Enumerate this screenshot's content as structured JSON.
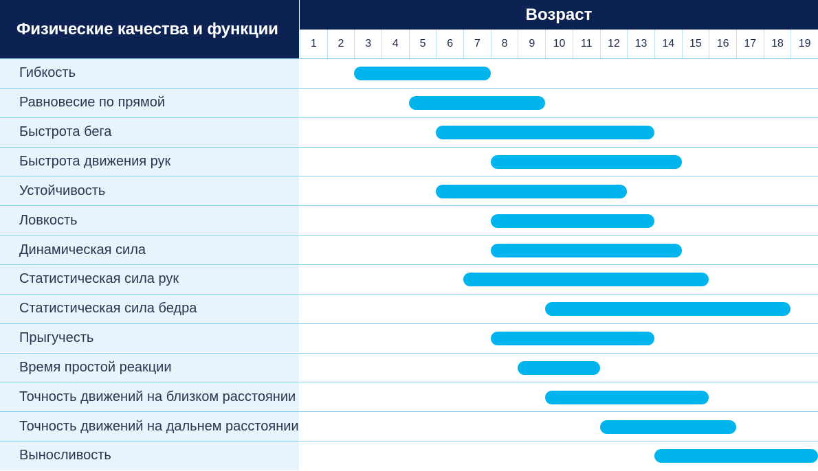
{
  "header": {
    "left_title": "Физические качества и функции",
    "age_title": "Возраст"
  },
  "colors": {
    "header_bg": "#0b2253",
    "label_bg": "#e8f3fb",
    "bar": "#00b4ee",
    "row_line": "#7fcfee"
  },
  "chart_data": {
    "type": "bar",
    "orientation": "horizontal-range",
    "title": "",
    "xlabel": "Возраст",
    "ylabel": "Физические качества и функции",
    "x_ticks": [
      "1",
      "2",
      "3",
      "4",
      "5",
      "6",
      "7",
      "8",
      "9",
      "10",
      "11",
      "12",
      "13",
      "14",
      "15",
      "16",
      "17",
      "18",
      "19"
    ],
    "xlim": [
      1,
      19
    ],
    "categories": [
      "Гибкость",
      "Равновесие по прямой",
      "Быстрота бега",
      "Быстрота движения рук",
      "Устойчивость",
      "Ловкость",
      "Динамическая сила",
      "Статистическая сила рук",
      "Статистическая сила бедра",
      "Прыгучесть",
      "Время простой реакции",
      "Точность движений на близком расстоянии",
      "Точность движений на дальнем расстоянии",
      "Выносливость"
    ],
    "ranges": [
      [
        3,
        7
      ],
      [
        5,
        9
      ],
      [
        6,
        13
      ],
      [
        8,
        14
      ],
      [
        6,
        12
      ],
      [
        8,
        13
      ],
      [
        8,
        14
      ],
      [
        7,
        15
      ],
      [
        10,
        18
      ],
      [
        8,
        13
      ],
      [
        9,
        11
      ],
      [
        10,
        15
      ],
      [
        12,
        16
      ],
      [
        14,
        19
      ]
    ]
  }
}
